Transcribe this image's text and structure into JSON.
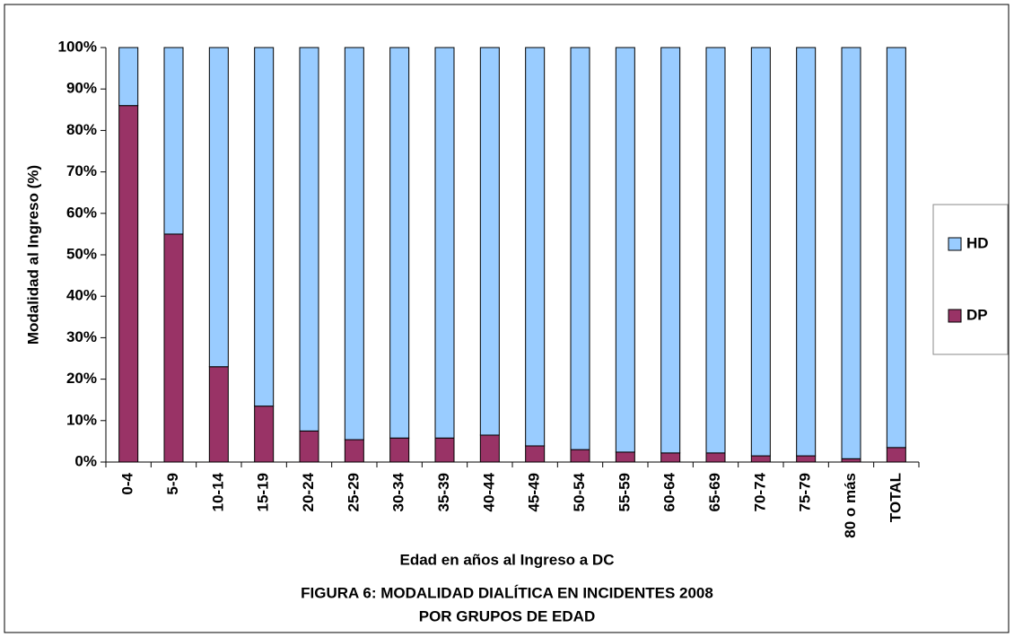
{
  "chart_data": {
    "type": "stacked_bar",
    "title": [
      "FIGURA 6: MODALIDAD DIALÍTICA EN INCIDENTES 2008",
      "POR GRUPOS DE EDAD"
    ],
    "x_label": "Edad en años al Ingreso a DC",
    "y_label": "Modalidad al Ingreso (%)",
    "categories": [
      "0-4",
      "5-9",
      "10-14",
      "15-19",
      "20-24",
      "25-29",
      "30-34",
      "35-39",
      "40-44",
      "45-49",
      "50-54",
      "55-59",
      "60-64",
      "65-69",
      "70-74",
      "75-79",
      "80 o más",
      "TOTAL"
    ],
    "series": [
      {
        "name": "DP",
        "color": "#993366",
        "values": [
          86,
          55,
          23,
          13.5,
          7.5,
          5.4,
          5.8,
          5.8,
          6.5,
          3.9,
          3,
          2.4,
          2.2,
          2.2,
          1.5,
          1.5,
          0.8,
          3.5
        ]
      },
      {
        "name": "HD",
        "color": "#99ccff",
        "values": [
          14,
          45,
          77,
          86.5,
          92.5,
          94.6,
          94.2,
          94.2,
          93.5,
          96.1,
          97,
          97.6,
          97.8,
          97.8,
          98.5,
          98.5,
          99.2,
          96.5
        ]
      }
    ],
    "ylim": [
      0,
      100
    ],
    "yticks": [
      {
        "value": 0,
        "label": "0%"
      },
      {
        "value": 10,
        "label": "10%"
      },
      {
        "value": 20,
        "label": "20%"
      },
      {
        "value": 30,
        "label": "30%"
      },
      {
        "value": 40,
        "label": "40%"
      },
      {
        "value": 50,
        "label": "50%"
      },
      {
        "value": 60,
        "label": "60%"
      },
      {
        "value": 70,
        "label": "70%"
      },
      {
        "value": 80,
        "label": "80%"
      },
      {
        "value": 90,
        "label": "90%"
      },
      {
        "value": 100,
        "label": "100%"
      }
    ],
    "legend": "right"
  }
}
